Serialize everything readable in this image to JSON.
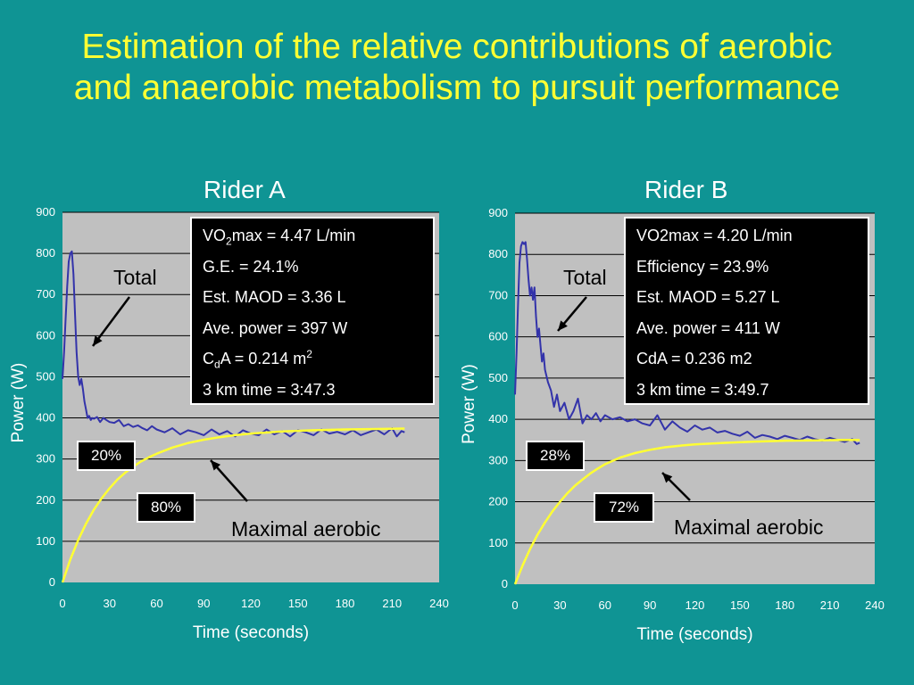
{
  "slide": {
    "title_line1": "Estimation of the relative contributions of aerobic",
    "title_line2": "and anaerobic metabolism to pursuit performance"
  },
  "colors": {
    "background": "#0f9494",
    "title": "#ffff33",
    "plot_area": "#c0c0c0",
    "total_line": "#3333aa",
    "aerobic_line": "#ffff33"
  },
  "chart_data": [
    {
      "type": "line",
      "title": "Rider A",
      "xlabel": "Time (seconds)",
      "ylabel": "Power (W)",
      "xlim": [
        0,
        240
      ],
      "ylim": [
        0,
        900
      ],
      "xticks": [
        0,
        30,
        60,
        90,
        120,
        150,
        180,
        210,
        240
      ],
      "yticks": [
        0,
        100,
        200,
        300,
        400,
        500,
        600,
        700,
        800,
        900
      ],
      "grid": true,
      "series": [
        {
          "name": "Total",
          "color": "#3333aa",
          "x": [
            0,
            1,
            2,
            3,
            4,
            5,
            6,
            7,
            8,
            9,
            10,
            11,
            12,
            13,
            14,
            15,
            16,
            17,
            18,
            19,
            20,
            22,
            24,
            26,
            28,
            30,
            33,
            36,
            39,
            42,
            45,
            48,
            51,
            54,
            57,
            60,
            65,
            70,
            75,
            80,
            85,
            90,
            95,
            100,
            105,
            110,
            115,
            120,
            125,
            130,
            135,
            140,
            145,
            150,
            155,
            160,
            165,
            170,
            175,
            180,
            185,
            190,
            195,
            200,
            205,
            210,
            213,
            216,
            218
          ],
          "y": [
            495,
            560,
            640,
            720,
            780,
            800,
            805,
            750,
            650,
            560,
            500,
            480,
            495,
            470,
            440,
            420,
            400,
            405,
            395,
            400,
            398,
            402,
            390,
            400,
            395,
            390,
            388,
            395,
            380,
            385,
            378,
            382,
            375,
            370,
            380,
            372,
            365,
            375,
            360,
            370,
            365,
            358,
            372,
            360,
            368,
            355,
            370,
            362,
            358,
            372,
            360,
            368,
            355,
            370,
            365,
            358,
            372,
            362,
            366,
            360,
            370,
            358,
            365,
            372,
            360,
            375,
            355,
            368,
            365
          ]
        },
        {
          "name": "Maximal aerobic",
          "color": "#ffff33",
          "x": [
            0,
            5,
            10,
            15,
            20,
            25,
            30,
            35,
            40,
            45,
            50,
            55,
            60,
            70,
            80,
            90,
            100,
            110,
            120,
            140,
            160,
            180,
            200,
            218
          ],
          "y": [
            0,
            56,
            103,
            143,
            177,
            205,
            229,
            250,
            267,
            281,
            294,
            304,
            313,
            328,
            339,
            347,
            353,
            358,
            362,
            367,
            370,
            372,
            373,
            374
          ]
        }
      ],
      "stats": {
        "line1_pre": "VO",
        "line1_sub": "2",
        "line1_post": "max = 4.47 L/min",
        "line2": "G.E. = 24.1%",
        "line3": "Est. MAOD = 3.36 L",
        "line4": "Ave. power = 397 W",
        "line5_pre": "C",
        "line5_sub": "d",
        "line5_mid": "A = 0.214 m",
        "line5_sup": "2",
        "line6": "3 km time = 3:47.3"
      },
      "anaerobic_pct": "20%",
      "aerobic_pct": "80%",
      "total_label": "Total",
      "aerobic_label": "Maximal aerobic"
    },
    {
      "type": "line",
      "title": "Rider B",
      "xlabel": "Time (seconds)",
      "ylabel": "Power (W)",
      "xlim": [
        0,
        240
      ],
      "ylim": [
        0,
        900
      ],
      "xticks": [
        0,
        30,
        60,
        90,
        120,
        150,
        180,
        210,
        240
      ],
      "yticks": [
        0,
        100,
        200,
        300,
        400,
        500,
        600,
        700,
        800,
        900
      ],
      "grid": true,
      "series": [
        {
          "name": "Total",
          "color": "#3333aa",
          "x": [
            0,
            1,
            2,
            3,
            4,
            5,
            6,
            7,
            8,
            9,
            10,
            11,
            12,
            13,
            14,
            15,
            16,
            17,
            18,
            19,
            20,
            22,
            24,
            26,
            28,
            30,
            33,
            36,
            39,
            42,
            45,
            48,
            51,
            54,
            57,
            60,
            65,
            70,
            75,
            80,
            85,
            90,
            95,
            100,
            105,
            110,
            115,
            120,
            125,
            130,
            135,
            140,
            145,
            150,
            155,
            160,
            165,
            170,
            175,
            180,
            185,
            190,
            195,
            200,
            205,
            210,
            215,
            220,
            225,
            228,
            230
          ],
          "y": [
            460,
            560,
            680,
            780,
            820,
            830,
            825,
            830,
            790,
            740,
            700,
            720,
            690,
            720,
            650,
            600,
            620,
            580,
            540,
            560,
            520,
            490,
            470,
            430,
            460,
            420,
            440,
            400,
            420,
            450,
            390,
            410,
            400,
            415,
            395,
            410,
            400,
            405,
            395,
            400,
            390,
            385,
            410,
            375,
            395,
            380,
            370,
            385,
            375,
            380,
            368,
            372,
            365,
            360,
            370,
            355,
            362,
            358,
            352,
            360,
            355,
            350,
            358,
            352,
            348,
            355,
            350,
            345,
            352,
            340,
            343
          ]
        },
        {
          "name": "Maximal aerobic",
          "color": "#ffff33",
          "x": [
            0,
            5,
            10,
            15,
            20,
            25,
            30,
            35,
            40,
            45,
            50,
            55,
            60,
            70,
            80,
            90,
            100,
            110,
            120,
            140,
            160,
            180,
            200,
            220,
            230
          ],
          "y": [
            0,
            45,
            85,
            120,
            150,
            177,
            200,
            221,
            239,
            254,
            268,
            280,
            291,
            307,
            318,
            326,
            332,
            336,
            339,
            343,
            346,
            348,
            349,
            350,
            350
          ]
        }
      ],
      "stats": {
        "line1": "VO2max = 4.20 L/min",
        "line2": "Efficiency = 23.9%",
        "line3": "Est. MAOD = 5.27 L",
        "line4": "Ave. power = 411 W",
        "line5": "CdA = 0.236 m2",
        "line6": "3 km time = 3:49.7"
      },
      "anaerobic_pct": "28%",
      "aerobic_pct": "72%",
      "total_label": "Total",
      "aerobic_label": "Maximal aerobic"
    }
  ]
}
